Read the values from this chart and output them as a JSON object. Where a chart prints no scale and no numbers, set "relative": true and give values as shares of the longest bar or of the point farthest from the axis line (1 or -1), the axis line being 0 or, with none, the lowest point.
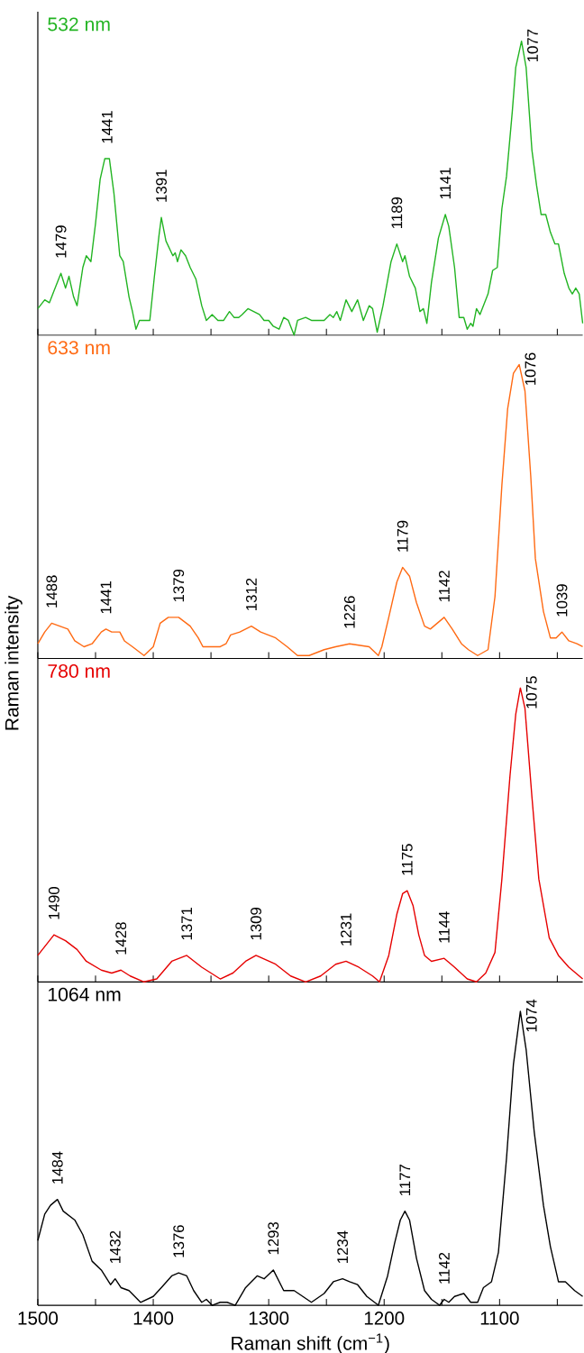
{
  "chart_data": [
    {
      "type": "line",
      "relative": true,
      "xlim": [
        1500,
        1028
      ],
      "tick_labels": false,
      "xticks": [
        1500,
        {
          "value": 1450,
          "label": null
        },
        1400,
        {
          "value": 1350,
          "label": null
        },
        1300,
        {
          "value": 1250,
          "label": null
        },
        1200,
        {
          "value": 1150,
          "label": null
        },
        1100,
        {
          "value": 1050,
          "label": null
        }
      ],
      "x": [
        1500,
        1494,
        1490,
        1486,
        1480,
        1476,
        1473,
        1469,
        1466,
        1461,
        1458,
        1454,
        1450,
        1446,
        1442,
        1440,
        1438,
        1434,
        1429,
        1426,
        1421,
        1418,
        1415,
        1412,
        1408,
        1403,
        1399,
        1395,
        1393,
        1389,
        1383,
        1381,
        1379,
        1376,
        1372,
        1368,
        1363,
        1358,
        1354,
        1349,
        1344,
        1339,
        1334,
        1330,
        1326,
        1323,
        1318,
        1313,
        1308,
        1304,
        1300,
        1296,
        1291,
        1287,
        1283,
        1278,
        1275,
        1268,
        1263,
        1257,
        1252,
        1247,
        1244,
        1241,
        1238,
        1233,
        1228,
        1223,
        1218,
        1213,
        1210,
        1206,
        1201,
        1194,
        1189,
        1184,
        1182,
        1178,
        1173,
        1169,
        1166,
        1163,
        1159,
        1153,
        1147,
        1144,
        1139,
        1135,
        1131,
        1128,
        1125,
        1123,
        1120,
        1117,
        1110,
        1106,
        1102,
        1098,
        1094,
        1089,
        1086,
        1081,
        1077,
        1072,
        1068,
        1064,
        1060,
        1056,
        1052,
        1049,
        1044,
        1040,
        1037,
        1034,
        1031,
        1028
      ],
      "series": [
        {
          "name": "532 nm",
          "color": "#22b422",
          "values": [
            0.09,
            0.12,
            0.11,
            0.15,
            0.21,
            0.16,
            0.2,
            0.13,
            0.1,
            0.23,
            0.27,
            0.25,
            0.38,
            0.53,
            0.6,
            0.6,
            0.6,
            0.48,
            0.27,
            0.25,
            0.13,
            0.08,
            0.02,
            0.05,
            0.05,
            0.05,
            0.2,
            0.34,
            0.4,
            0.32,
            0.27,
            0.28,
            0.25,
            0.29,
            0.27,
            0.23,
            0.19,
            0.1,
            0.05,
            0.07,
            0.05,
            0.05,
            0.08,
            0.06,
            0.06,
            0.07,
            0.09,
            0.08,
            0.07,
            0.05,
            0.05,
            0.03,
            0.02,
            0.06,
            0.05,
            0.0,
            0.05,
            0.06,
            0.05,
            0.05,
            0.05,
            0.07,
            0.06,
            0.08,
            0.05,
            0.12,
            0.08,
            0.12,
            0.05,
            0.1,
            0.09,
            0.01,
            0.1,
            0.25,
            0.31,
            0.25,
            0.27,
            0.2,
            0.16,
            0.08,
            0.09,
            0.04,
            0.18,
            0.33,
            0.41,
            0.37,
            0.23,
            0.06,
            0.06,
            0.02,
            0.04,
            0.03,
            0.09,
            0.07,
            0.14,
            0.22,
            0.23,
            0.43,
            0.54,
            0.76,
            0.91,
            1.0,
            0.91,
            0.63,
            0.51,
            0.41,
            0.41,
            0.35,
            0.31,
            0.31,
            0.21,
            0.16,
            0.14,
            0.16,
            0.14,
            0.04
          ]
        }
      ],
      "annotations": [
        {
          "text": "1479",
          "x": 1480,
          "y": 0.21
        },
        {
          "text": "1441",
          "x": 1440,
          "y": 0.6
        },
        {
          "text": "1391",
          "x": 1393,
          "y": 0.4
        },
        {
          "text": "1189",
          "x": 1189,
          "y": 0.31
        },
        {
          "text": "1141",
          "x": 1147,
          "y": 0.41
        },
        {
          "text": "1077",
          "x": 1081,
          "y": 1.0
        }
      ]
    },
    {
      "type": "line",
      "relative": true,
      "xlim": [
        1500,
        1028
      ],
      "tick_labels": false,
      "xticks": [
        1500,
        {
          "value": 1450,
          "label": null
        },
        1400,
        {
          "value": 1350,
          "label": null
        },
        1300,
        {
          "value": 1250,
          "label": null
        },
        1200,
        {
          "value": 1150,
          "label": null
        },
        1100,
        {
          "value": 1050,
          "label": null
        }
      ],
      "x": [
        1500,
        1494,
        1488,
        1481,
        1474,
        1468,
        1460,
        1453,
        1445,
        1441,
        1436,
        1429,
        1425,
        1418,
        1408,
        1400,
        1394,
        1387,
        1378,
        1368,
        1361,
        1357,
        1350,
        1342,
        1337,
        1333,
        1325,
        1320,
        1315,
        1307,
        1294,
        1284,
        1275,
        1265,
        1252,
        1242,
        1230,
        1213,
        1205,
        1202,
        1196,
        1189,
        1184,
        1178,
        1172,
        1165,
        1160,
        1154,
        1148,
        1141,
        1133,
        1127,
        1119,
        1110,
        1104,
        1098,
        1093,
        1088,
        1083,
        1078,
        1073,
        1069,
        1062,
        1056,
        1051,
        1046,
        1040,
        1033,
        1028
      ],
      "series": [
        {
          "name": "633 nm",
          "color": "#ff6a13",
          "values": [
            0.05,
            0.09,
            0.12,
            0.11,
            0.1,
            0.06,
            0.04,
            0.05,
            0.09,
            0.1,
            0.09,
            0.09,
            0.06,
            0.04,
            0.01,
            0.04,
            0.12,
            0.14,
            0.14,
            0.11,
            0.07,
            0.04,
            0.04,
            0.04,
            0.05,
            0.08,
            0.09,
            0.1,
            0.11,
            0.09,
            0.07,
            0.04,
            0.01,
            0.01,
            0.03,
            0.04,
            0.05,
            0.04,
            0.01,
            0.04,
            0.14,
            0.26,
            0.31,
            0.28,
            0.19,
            0.11,
            0.1,
            0.12,
            0.14,
            0.1,
            0.05,
            0.03,
            0.01,
            0.03,
            0.21,
            0.59,
            0.85,
            0.97,
            1.0,
            0.91,
            0.62,
            0.34,
            0.16,
            0.07,
            0.07,
            0.09,
            0.06,
            0.05,
            0.04
          ]
        }
      ],
      "annotations": [
        {
          "text": "1488",
          "x": 1488,
          "y": 0.12
        },
        {
          "text": "1441",
          "x": 1441,
          "y": 0.1
        },
        {
          "text": "1379",
          "x": 1378,
          "y": 0.14
        },
        {
          "text": "1312",
          "x": 1315,
          "y": 0.11
        },
        {
          "text": "1226",
          "x": 1230,
          "y": 0.05
        },
        {
          "text": "1179",
          "x": 1184,
          "y": 0.31
        },
        {
          "text": "1142",
          "x": 1148,
          "y": 0.14
        },
        {
          "text": "1076",
          "x": 1083,
          "y": 1.0
        },
        {
          "text": "1039",
          "x": 1046,
          "y": 0.09
        }
      ]
    },
    {
      "type": "line",
      "relative": true,
      "xlim": [
        1500,
        1028
      ],
      "tick_labels": false,
      "ylabel": "Raman intensity",
      "xticks": [
        1500,
        {
          "value": 1450,
          "label": null
        },
        1400,
        {
          "value": 1350,
          "label": null
        },
        1300,
        {
          "value": 1250,
          "label": null
        },
        1200,
        {
          "value": 1150,
          "label": null
        },
        1100,
        {
          "value": 1050,
          "label": null
        }
      ],
      "x": [
        1500,
        1486,
        1476,
        1466,
        1458,
        1445,
        1436,
        1428,
        1420,
        1408,
        1397,
        1384,
        1371,
        1358,
        1342,
        1331,
        1320,
        1311,
        1294,
        1281,
        1268,
        1255,
        1242,
        1233,
        1222,
        1210,
        1204,
        1196,
        1189,
        1184,
        1180,
        1175,
        1170,
        1165,
        1159,
        1148,
        1139,
        1128,
        1120,
        1112,
        1104,
        1098,
        1091,
        1086,
        1082,
        1078,
        1072,
        1066,
        1057,
        1049,
        1040,
        1028
      ],
      "series": [
        {
          "name": "780 nm",
          "color": "#e60000",
          "values": [
            0.09,
            0.16,
            0.14,
            0.11,
            0.07,
            0.04,
            0.03,
            0.04,
            0.02,
            0.0,
            0.01,
            0.07,
            0.09,
            0.05,
            0.01,
            0.03,
            0.07,
            0.09,
            0.06,
            0.02,
            0.0,
            0.02,
            0.06,
            0.07,
            0.05,
            0.02,
            0.0,
            0.09,
            0.23,
            0.3,
            0.31,
            0.26,
            0.16,
            0.09,
            0.07,
            0.08,
            0.05,
            0.01,
            0.0,
            0.03,
            0.1,
            0.35,
            0.7,
            0.91,
            1.0,
            0.93,
            0.63,
            0.35,
            0.15,
            0.09,
            0.05,
            0.01
          ]
        }
      ],
      "annotations": [
        {
          "text": "1490",
          "x": 1486,
          "y": 0.16
        },
        {
          "text": "1428",
          "x": 1428,
          "y": 0.04
        },
        {
          "text": "1371",
          "x": 1371,
          "y": 0.09
        },
        {
          "text": "1309",
          "x": 1311,
          "y": 0.09
        },
        {
          "text": "1231",
          "x": 1233,
          "y": 0.07
        },
        {
          "text": "1175",
          "x": 1180,
          "y": 0.31
        },
        {
          "text": "1144",
          "x": 1148,
          "y": 0.08
        },
        {
          "text": "1075",
          "x": 1082,
          "y": 1.0
        }
      ]
    },
    {
      "type": "line",
      "relative": true,
      "xlim": [
        1500,
        1028
      ],
      "tick_labels": "x",
      "xlabel": "Raman shift (cm$^{−1}$)",
      "xticks": [
        1500,
        {
          "value": 1450,
          "label": null
        },
        1400,
        {
          "value": 1350,
          "label": null
        },
        1300,
        {
          "value": 1250,
          "label": null
        },
        1200,
        {
          "value": 1150,
          "label": null
        },
        1100,
        {
          "value": 1050,
          "label": null
        }
      ],
      "x": [
        1500,
        1494,
        1489,
        1483,
        1478,
        1468,
        1461,
        1453,
        1445,
        1437,
        1433,
        1428,
        1421,
        1411,
        1400,
        1393,
        1384,
        1378,
        1371,
        1365,
        1358,
        1354,
        1349,
        1342,
        1336,
        1329,
        1320,
        1310,
        1304,
        1296,
        1287,
        1278,
        1263,
        1252,
        1244,
        1236,
        1230,
        1223,
        1215,
        1205,
        1197,
        1191,
        1186,
        1182,
        1178,
        1172,
        1165,
        1159,
        1152,
        1148,
        1144,
        1139,
        1131,
        1125,
        1119,
        1114,
        1107,
        1101,
        1094,
        1088,
        1082,
        1077,
        1070,
        1062,
        1056,
        1049,
        1043,
        1035,
        1028
      ],
      "series": [
        {
          "name": "1064 nm",
          "color": "#000000",
          "values": [
            0.22,
            0.31,
            0.34,
            0.36,
            0.32,
            0.29,
            0.24,
            0.15,
            0.12,
            0.07,
            0.09,
            0.06,
            0.05,
            0.01,
            0.03,
            0.06,
            0.1,
            0.11,
            0.1,
            0.05,
            0.01,
            0.02,
            0.0,
            0.01,
            0.01,
            0.0,
            0.06,
            0.1,
            0.09,
            0.12,
            0.05,
            0.05,
            0.01,
            0.04,
            0.08,
            0.09,
            0.08,
            0.07,
            0.03,
            0.0,
            0.1,
            0.21,
            0.29,
            0.32,
            0.29,
            0.16,
            0.05,
            0.02,
            0.0,
            0.02,
            0.01,
            0.03,
            0.04,
            0.01,
            0.01,
            0.06,
            0.08,
            0.18,
            0.5,
            0.82,
            1.0,
            0.87,
            0.59,
            0.34,
            0.2,
            0.08,
            0.08,
            0.05,
            0.03
          ]
        }
      ],
      "annotations": [
        {
          "text": "1484",
          "x": 1483,
          "y": 0.36
        },
        {
          "text": "1432",
          "x": 1433,
          "y": 0.09
        },
        {
          "text": "1376",
          "x": 1378,
          "y": 0.11
        },
        {
          "text": "1293",
          "x": 1296,
          "y": 0.12
        },
        {
          "text": "1234",
          "x": 1236,
          "y": 0.09
        },
        {
          "text": "1177",
          "x": 1182,
          "y": 0.32
        },
        {
          "text": "1142",
          "x": 1148,
          "y": 0.02
        },
        {
          "text": "1074",
          "x": 1082,
          "y": 1.0
        }
      ]
    }
  ]
}
